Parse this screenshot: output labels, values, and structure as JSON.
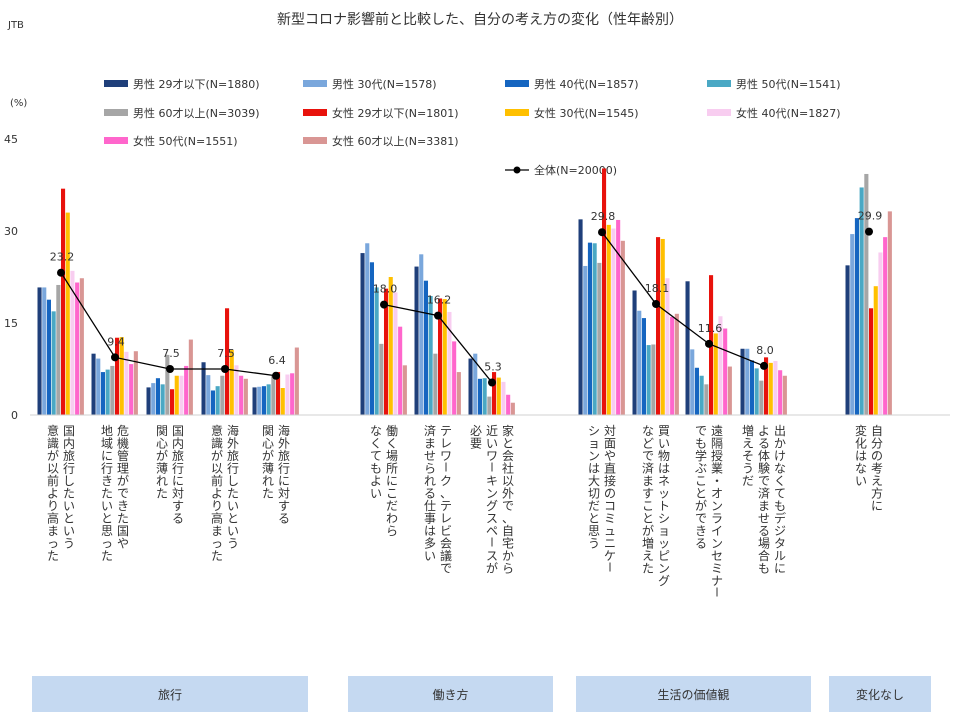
{
  "source_label": "JTB",
  "chart_data": {
    "type": "bar",
    "title": "新型コロナ影響前と比較した、自分の考え方の変化（性年齢別）",
    "y_unit": "(%)",
    "ylim": [
      0,
      45
    ],
    "yticks": [
      0,
      15,
      30,
      45
    ],
    "grid": false,
    "legend_position": "top",
    "categories": [
      [
        "国内旅行したいという",
        "意識が以前より高まった"
      ],
      [
        "危機管理ができた国や",
        "地域に行きたいと思った"
      ],
      [
        "国内旅行に対する",
        "関心が薄れた"
      ],
      [
        "海外旅行したいという",
        "意識が以前より高まった"
      ],
      [
        "海外旅行に対する",
        "関心が薄れた"
      ],
      [
        "働く場所にこだわら",
        "なくてもよい"
      ],
      [
        "テレワーク、テレビ会議で",
        "済ませられる仕事は多い"
      ],
      [
        "家と会社以外で、自宅から",
        "近いワーキングスペースが",
        "必要"
      ],
      [
        "対面や直接のコミュニケー",
        "ションは大切だと思う"
      ],
      [
        "買い物はネットショッピング",
        "などで済ますことが増えた"
      ],
      [
        "遠隔授業・オンラインセミナー",
        "でも学ぶことができる"
      ],
      [
        "出かけなくてもデジタルに",
        "よる体験で済ませる場合も",
        "増えそうだ"
      ],
      [
        "自分の考え方に",
        "変化はない"
      ]
    ],
    "groups": [
      {
        "label": "旅行",
        "category_count": 5
      },
      {
        "label": "働き方",
        "category_count": 3
      },
      {
        "label": "生活の価値観",
        "category_count": 4
      },
      {
        "label": "変化なし",
        "category_count": 1
      }
    ],
    "series": [
      {
        "name": "男性 29才以下(N=1880)",
        "color": "#1f3f7a",
        "values": [
          20.8,
          10.0,
          4.5,
          8.6,
          4.5,
          26.4,
          24.2,
          9.2,
          31.9,
          20.3,
          21.8,
          10.8,
          24.4
        ]
      },
      {
        "name": "男性 30代(N=1578)",
        "color": "#7aa7dc",
        "values": [
          20.8,
          9.2,
          5.2,
          6.5,
          4.6,
          28.0,
          26.2,
          10.0,
          24.3,
          17.0,
          10.7,
          10.8,
          29.5
        ]
      },
      {
        "name": "男性 40代(N=1857)",
        "color": "#1565c0",
        "values": [
          18.8,
          7.0,
          6.0,
          4.0,
          4.7,
          24.9,
          21.9,
          5.9,
          28.1,
          15.8,
          7.7,
          8.9,
          32.1
        ]
      },
      {
        "name": "男性 50代(N=1541)",
        "color": "#4aa8c4",
        "values": [
          16.9,
          7.4,
          5.0,
          4.7,
          5.0,
          20.8,
          19.4,
          6.0,
          28.0,
          11.4,
          6.4,
          7.6,
          37.1
        ]
      },
      {
        "name": "男性 60才以上(N=3039)",
        "color": "#a6a6a6",
        "values": [
          21.2,
          8.0,
          9.8,
          6.4,
          6.4,
          11.6,
          10.0,
          3.0,
          24.8,
          11.5,
          5.0,
          5.6,
          39.3
        ]
      },
      {
        "name": "女性 29才以下(N=1801)",
        "color": "#e8120c",
        "values": [
          36.9,
          12.6,
          4.2,
          17.4,
          7.0,
          20.6,
          19.0,
          7.0,
          40.2,
          29.0,
          22.8,
          9.4,
          17.4
        ]
      },
      {
        "name": "女性 30代(N=1545)",
        "color": "#ffc000",
        "values": [
          33.0,
          12.7,
          6.4,
          10.6,
          4.4,
          22.5,
          18.9,
          6.1,
          31.0,
          28.7,
          13.3,
          8.5,
          21.0
        ]
      },
      {
        "name": "女性 40代(N=1827)",
        "color": "#f8cdf0",
        "values": [
          23.5,
          10.3,
          6.4,
          8.1,
          6.6,
          20.0,
          16.8,
          5.4,
          30.4,
          22.3,
          16.1,
          8.8,
          26.5
        ]
      },
      {
        "name": "女性 50代(N=1551)",
        "color": "#ff66cc",
        "values": [
          21.6,
          8.3,
          8.0,
          6.4,
          6.8,
          14.4,
          12.0,
          3.3,
          31.8,
          16.0,
          14.1,
          7.3,
          29.0
        ]
      },
      {
        "name": "女性 60才以上(N=3381)",
        "color": "#d99694",
        "values": [
          22.3,
          10.4,
          12.3,
          5.9,
          11.0,
          8.1,
          7.0,
          2.0,
          28.4,
          16.5,
          7.9,
          6.4,
          33.2
        ]
      }
    ],
    "line": {
      "name": "全体(N=20000)",
      "color": "#000000",
      "values": [
        23.2,
        9.4,
        7.5,
        7.5,
        6.4,
        18.0,
        16.2,
        5.3,
        29.8,
        18.1,
        11.6,
        8.0,
        29.9
      ]
    }
  }
}
